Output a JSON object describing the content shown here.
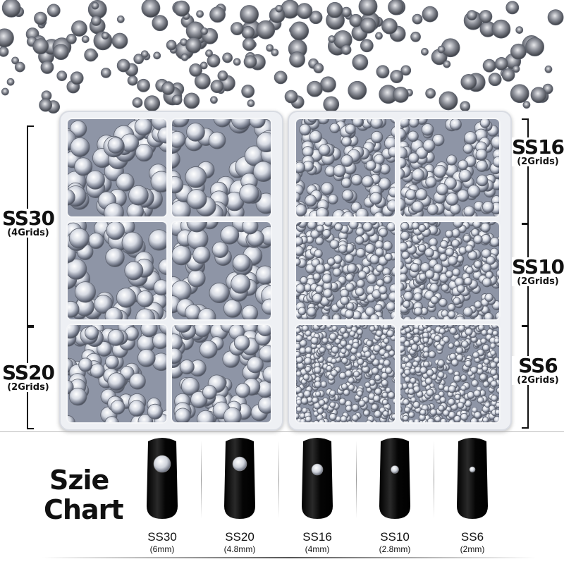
{
  "left_tray": {
    "groups": [
      {
        "size": "SS30",
        "grids": "(4Grids)"
      },
      {
        "size": "SS20",
        "grids": "(2Grids)"
      }
    ]
  },
  "right_tray": {
    "groups": [
      {
        "size": "SS16",
        "grids": "(2Grids)"
      },
      {
        "size": "SS10",
        "grids": "(2Grids)"
      },
      {
        "size": "SS6",
        "grids": "(2Grids)"
      }
    ]
  },
  "size_chart": {
    "title_line1": "Szie",
    "title_line2": "Chart",
    "items": [
      {
        "size": "SS30",
        "mm": "(6mm)"
      },
      {
        "size": "SS20",
        "mm": "(4.8mm)"
      },
      {
        "size": "SS16",
        "mm": "(4mm)"
      },
      {
        "size": "SS10",
        "mm": "(2.8mm)"
      },
      {
        "size": "SS6",
        "mm": "(2mm)"
      }
    ]
  },
  "colors": {
    "tray": "#eef0f4",
    "stone_bg": "#8e95a6",
    "nail": "#111111"
  }
}
